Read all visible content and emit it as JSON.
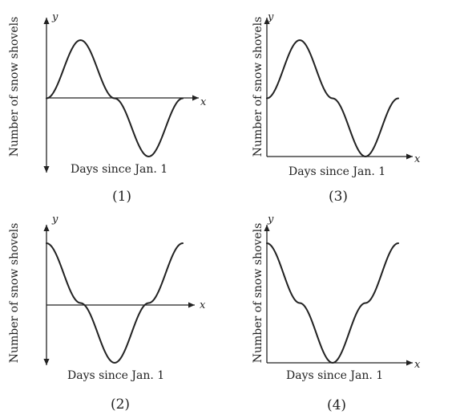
{
  "figure": {
    "y_axis_label": "Number of snow shovels",
    "x_axis_label": "Days since Jan. 1",
    "x_axis_letter": "x",
    "y_axis_letter": "y"
  },
  "chart_data": [
    {
      "type": "line",
      "caption": "(1)",
      "xlabel": "Days since Jan. 1",
      "ylabel": "Number of snow shovels",
      "x_axis_position": "middle",
      "series": [
        {
          "x": [
            0,
            0.25,
            0.5,
            0.75,
            1.0
          ],
          "y": [
            0,
            1,
            0,
            -1,
            0
          ]
        }
      ]
    },
    {
      "type": "line",
      "caption": "(3)",
      "xlabel": "Days since Jan. 1",
      "ylabel": "Number of snow shovels",
      "x_axis_position": "bottom",
      "series": [
        {
          "x": [
            0,
            0.25,
            0.5,
            0.75,
            1.0
          ],
          "y": [
            1,
            2,
            1,
            0,
            1
          ]
        }
      ]
    },
    {
      "type": "line",
      "caption": "(2)",
      "xlabel": "Days since Jan. 1",
      "ylabel": "Number of snow shovels",
      "x_axis_position": "middle",
      "series": [
        {
          "x": [
            0,
            0.25,
            0.5,
            0.75,
            1.0
          ],
          "y": [
            1,
            0,
            -1,
            0,
            1
          ]
        }
      ]
    },
    {
      "type": "line",
      "caption": "(4)",
      "xlabel": "Days since Jan. 1",
      "ylabel": "Number of snow shovels",
      "x_axis_position": "bottom",
      "series": [
        {
          "x": [
            0,
            0.25,
            0.5,
            0.75,
            1.0
          ],
          "y": [
            2,
            1,
            0,
            1,
            2
          ]
        }
      ]
    }
  ]
}
